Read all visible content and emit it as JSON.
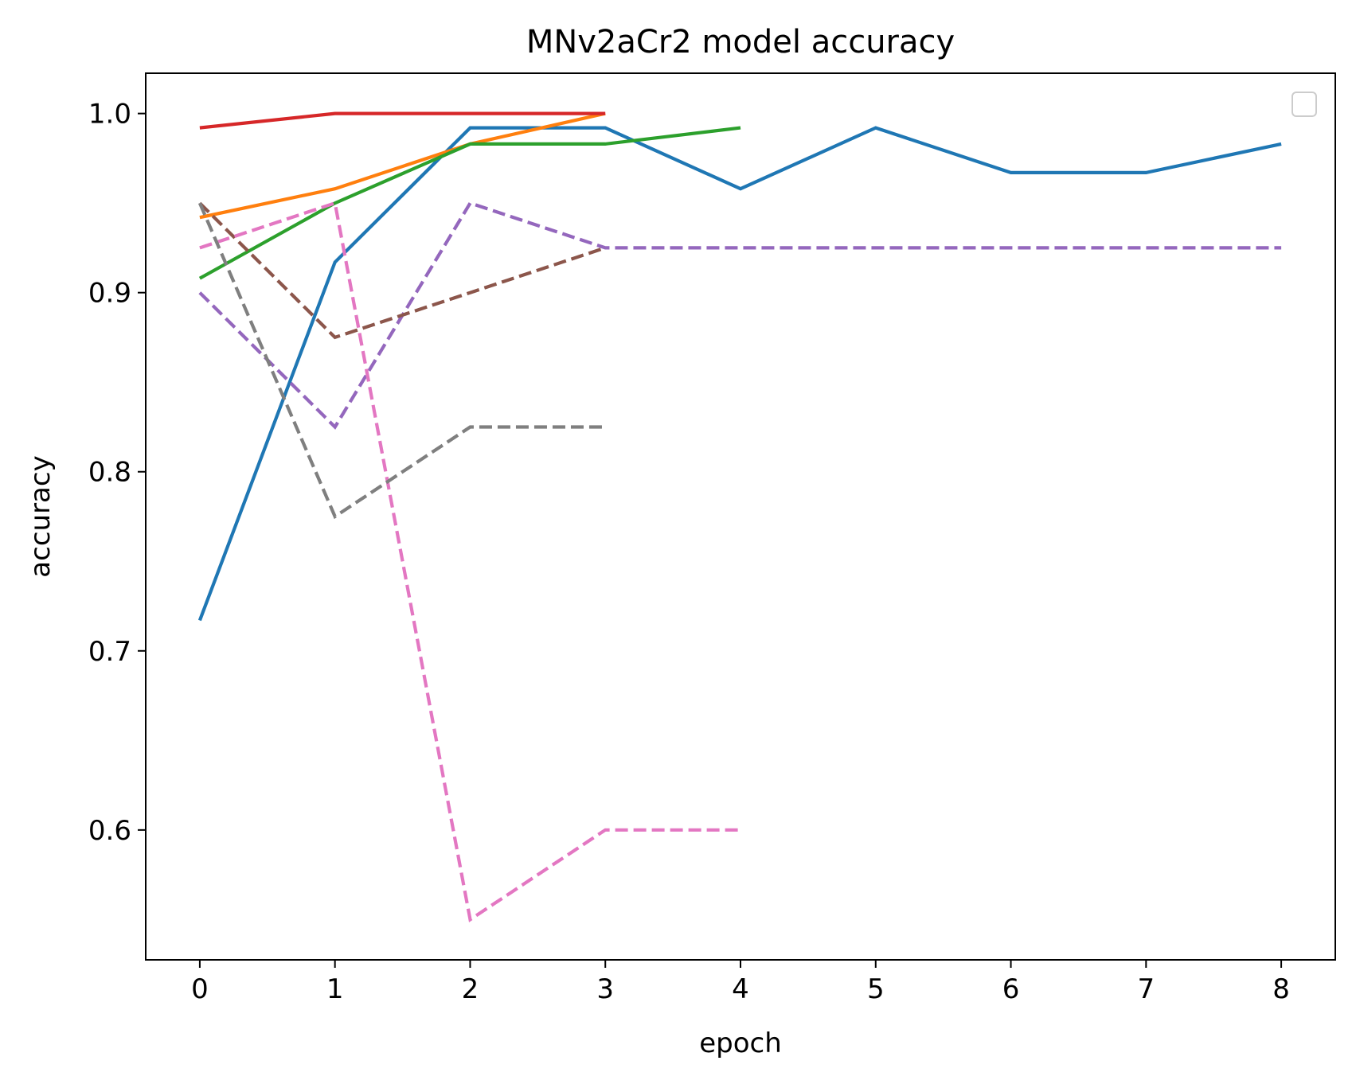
{
  "chart_data": {
    "type": "line",
    "title": "MNv2aCr2 model accuracy",
    "xlabel": "epoch",
    "ylabel": "accuracy",
    "xlim": [
      -0.4,
      8.4
    ],
    "ylim": [
      0.5275,
      1.0225
    ],
    "x_ticks": [
      0,
      1,
      2,
      3,
      4,
      5,
      6,
      7,
      8
    ],
    "y_ticks": [
      0.6,
      0.7,
      0.8,
      0.9,
      1.0
    ],
    "x_tick_labels": [
      "0",
      "1",
      "2",
      "3",
      "4",
      "5",
      "6",
      "7",
      "8"
    ],
    "y_tick_labels": [
      "0.6",
      "0.7",
      "0.8",
      "0.9",
      "1.0"
    ],
    "grid": false,
    "legend": "top-right (empty)",
    "series": [
      {
        "color": "#1f77b4",
        "dashed": false,
        "x": [
          0,
          1,
          2,
          3,
          4,
          5,
          6,
          7,
          8
        ],
        "y": [
          0.717,
          0.917,
          0.992,
          0.992,
          0.958,
          0.992,
          0.967,
          0.967,
          0.983
        ]
      },
      {
        "color": "#ff7f0e",
        "dashed": false,
        "x": [
          0,
          1,
          2,
          3
        ],
        "y": [
          0.942,
          0.958,
          0.983,
          1.0
        ]
      },
      {
        "color": "#2ca02c",
        "dashed": false,
        "x": [
          0,
          1,
          2,
          3,
          4
        ],
        "y": [
          0.908,
          0.95,
          0.983,
          0.983,
          0.992
        ]
      },
      {
        "color": "#d62728",
        "dashed": false,
        "x": [
          0,
          1,
          2,
          3
        ],
        "y": [
          0.992,
          1.0,
          1.0,
          1.0
        ]
      },
      {
        "color": "#9467bd",
        "dashed": true,
        "x": [
          0,
          1,
          2,
          3,
          4,
          5,
          6,
          7,
          8
        ],
        "y": [
          0.9,
          0.825,
          0.95,
          0.925,
          0.925,
          0.925,
          0.925,
          0.925,
          0.925
        ]
      },
      {
        "color": "#8c564b",
        "dashed": true,
        "x": [
          0,
          1,
          2,
          3
        ],
        "y": [
          0.95,
          0.875,
          0.9,
          0.925
        ]
      },
      {
        "color": "#e377c2",
        "dashed": true,
        "x": [
          0,
          1,
          2,
          3,
          4
        ],
        "y": [
          0.925,
          0.95,
          0.55,
          0.6,
          0.6
        ]
      },
      {
        "color": "#7f7f7f",
        "dashed": true,
        "x": [
          0,
          1,
          2,
          3
        ],
        "y": [
          0.95,
          0.775,
          0.825,
          0.825
        ]
      }
    ]
  }
}
